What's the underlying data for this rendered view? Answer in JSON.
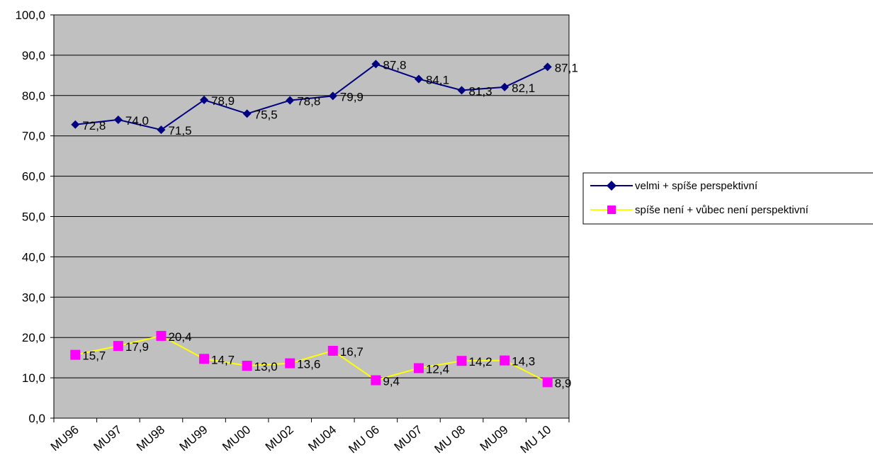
{
  "chart_data": {
    "type": "line",
    "categories": [
      "MU96",
      "MU97",
      "MU98",
      "MU99",
      "MU00",
      "MU02",
      "MU04",
      "MU 06",
      "MU07",
      "MU 08",
      "MU09",
      "MU 10"
    ],
    "ylim": [
      0,
      100
    ],
    "yticks": [
      "0,0",
      "10,0",
      "20,0",
      "30,0",
      "40,0",
      "50,0",
      "60,0",
      "70,0",
      "80,0",
      "90,0",
      "100,0"
    ],
    "grid": true,
    "plot_background": "#c0c0c0",
    "legend_position": "right",
    "series": [
      {
        "name": "velmi + spíše perspektivní",
        "color": "#000080",
        "marker": "diamond",
        "values": [
          72.8,
          74.0,
          71.5,
          78.9,
          75.5,
          78.8,
          79.9,
          87.8,
          84.1,
          81.3,
          82.1,
          87.1
        ],
        "labels": [
          "72,8",
          "74,0",
          "71,5",
          "78,9",
          "75,5",
          "78,8",
          "79,9",
          "87,8",
          "84,1",
          "81,3",
          "82,1",
          "87,1"
        ]
      },
      {
        "name": "spíše není + vůbec není perspektivní",
        "color": "#ffff00",
        "marker_color": "#ff00ff",
        "marker": "square",
        "values": [
          15.7,
          17.9,
          20.4,
          14.7,
          13.0,
          13.6,
          16.7,
          9.4,
          12.4,
          14.2,
          14.3,
          8.9
        ],
        "labels": [
          "15,7",
          "17,9",
          "20,4",
          "14,7",
          "13,0",
          "13,6",
          "16,7",
          "9,4",
          "12,4",
          "14,2",
          "14,3",
          "8,9"
        ]
      }
    ]
  }
}
